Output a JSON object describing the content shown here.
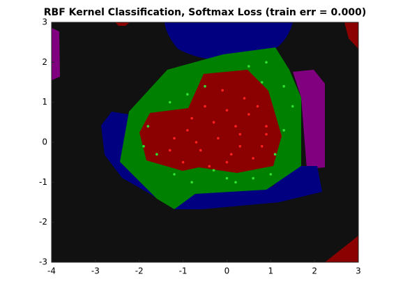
{
  "chart_data": {
    "type": "scatter",
    "title": "RBF Kernel Classification, Softmax Loss (train err = 0.000)",
    "xlim": [
      -4,
      3
    ],
    "xticks": [
      -4,
      -3,
      -2,
      -1,
      0,
      1,
      2,
      3
    ],
    "ylim": [
      -3,
      3
    ],
    "yticks": [
      -3,
      -2,
      -1,
      0,
      1,
      2,
      3
    ],
    "grid": false,
    "series": [
      {
        "color": "#ff2020",
        "x": [
          -1.2,
          -0.9,
          -0.6,
          -0.3,
          0,
          0.3,
          0.6,
          0.9,
          -1,
          -0.5,
          0.1,
          0.5,
          0.8,
          -0.8,
          -0.2,
          0.4,
          -1.3,
          -0.4,
          0.2,
          0.7,
          -0.7,
          0,
          0.3,
          -0.1,
          0.9
        ],
        "values": [
          0.1,
          0.3,
          -0.2,
          0.5,
          0.8,
          0.2,
          -0.4,
          0.4,
          -0.5,
          0.9,
          -0.3,
          0.7,
          -0.1,
          0.6,
          0.1,
          1.1,
          -0.2,
          -0.6,
          0.4,
          0.9,
          0.0,
          -0.5,
          -0.1,
          1.3,
          0.2
        ]
      },
      {
        "color": "#30e030",
        "x": [
          -1.8,
          -1.6,
          -1.2,
          -0.8,
          -0.3,
          0.2,
          0.6,
          1.0,
          1.3,
          1.5,
          1.3,
          -0.9,
          -0.5,
          0.5,
          0.9,
          1.1,
          -1.9,
          -1.3,
          0,
          0.8
        ],
        "values": [
          0.4,
          -0.3,
          -0.8,
          -1.0,
          -0.7,
          -1.0,
          -0.9,
          -0.8,
          0.3,
          0.9,
          1.4,
          1.2,
          1.4,
          1.9,
          2.0,
          -0.3,
          -0.1,
          1.0,
          -0.9,
          1.5
        ]
      }
    ]
  }
}
